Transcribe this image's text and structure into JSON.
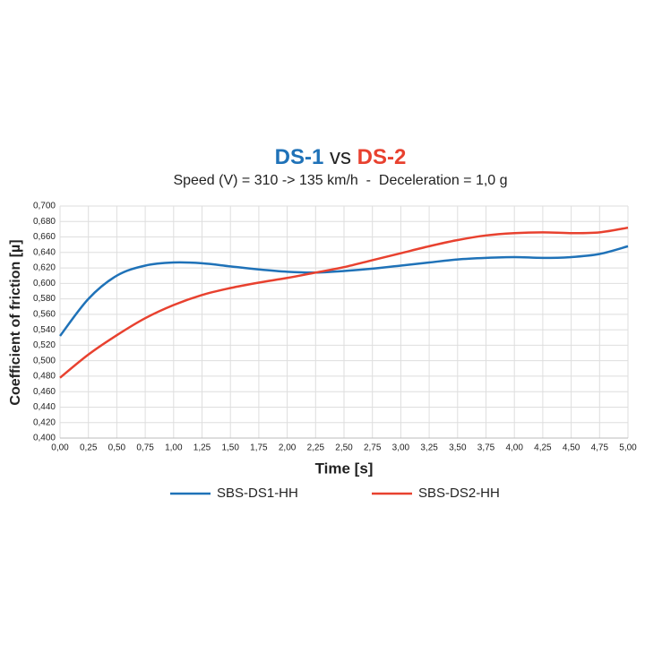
{
  "chart_data": {
    "type": "line",
    "title": [
      "DS-1",
      "vs",
      "DS-2"
    ],
    "subtitle": "Speed (V) = 310 -> 135 km/h  -  Deceleration = 1,0 g",
    "x_label": "Time [s]",
    "y_label": "Coefficient of friction [µ]",
    "x": [
      0,
      0.25,
      0.5,
      0.75,
      1.0,
      1.25,
      1.5,
      1.75,
      2.0,
      2.25,
      2.5,
      2.75,
      3.0,
      3.25,
      3.5,
      3.75,
      4.0,
      4.25,
      4.5,
      4.75,
      5.0
    ],
    "series": [
      {
        "name": "SBS-DS1-HH",
        "color": "#1f72b8",
        "values": [
          0.532,
          0.58,
          0.61,
          0.623,
          0.627,
          0.626,
          0.622,
          0.618,
          0.615,
          0.614,
          0.616,
          0.619,
          0.623,
          0.627,
          0.631,
          0.633,
          0.634,
          0.633,
          0.634,
          0.638,
          0.648
        ]
      },
      {
        "name": "SBS-DS2-HH",
        "color": "#e8412f",
        "values": [
          0.478,
          0.508,
          0.533,
          0.555,
          0.572,
          0.585,
          0.594,
          0.601,
          0.607,
          0.614,
          0.621,
          0.63,
          0.639,
          0.648,
          0.656,
          0.662,
          0.665,
          0.666,
          0.665,
          0.666,
          0.672
        ]
      }
    ],
    "xlim": [
      0,
      5
    ],
    "ylim": [
      0.4,
      0.7
    ],
    "xticks": [
      {
        "value": 0,
        "label": "0,00"
      },
      {
        "value": 0.25,
        "label": "0,25"
      },
      {
        "value": 0.5,
        "label": "0,50"
      },
      {
        "value": 0.75,
        "label": "0,75"
      },
      {
        "value": 1,
        "label": "1,00"
      },
      {
        "value": 1.25,
        "label": "1,25"
      },
      {
        "value": 1.5,
        "label": "1,50"
      },
      {
        "value": 1.75,
        "label": "1,75"
      },
      {
        "value": 2,
        "label": "2,00"
      },
      {
        "value": 2.25,
        "label": "2,25"
      },
      {
        "value": 2.5,
        "label": "2,50"
      },
      {
        "value": 2.75,
        "label": "2,75"
      },
      {
        "value": 3,
        "label": "3,00"
      },
      {
        "value": 3.25,
        "label": "3,25"
      },
      {
        "value": 3.5,
        "label": "3,50"
      },
      {
        "value": 3.75,
        "label": "3,75"
      },
      {
        "value": 4,
        "label": "4,00"
      },
      {
        "value": 4.25,
        "label": "4,25"
      },
      {
        "value": 4.5,
        "label": "4,50"
      },
      {
        "value": 4.75,
        "label": "4,75"
      },
      {
        "value": 5,
        "label": "5,00"
      }
    ],
    "yticks": [
      {
        "value": 0.4,
        "label": "0,400"
      },
      {
        "value": 0.42,
        "label": "0,420"
      },
      {
        "value": 0.44,
        "label": "0,440"
      },
      {
        "value": 0.46,
        "label": "0,460"
      },
      {
        "value": 0.48,
        "label": "0,480"
      },
      {
        "value": 0.5,
        "label": "0,500"
      },
      {
        "value": 0.52,
        "label": "0,520"
      },
      {
        "value": 0.54,
        "label": "0,540"
      },
      {
        "value": 0.56,
        "label": "0,560"
      },
      {
        "value": 0.58,
        "label": "0,580"
      },
      {
        "value": 0.6,
        "label": "0,600"
      },
      {
        "value": 0.62,
        "label": "0,620"
      },
      {
        "value": 0.64,
        "label": "0,640"
      },
      {
        "value": 0.66,
        "label": "0,660"
      },
      {
        "value": 0.68,
        "label": "0,680"
      },
      {
        "value": 0.7,
        "label": "0,700"
      }
    ],
    "grid": true,
    "legend": "bottom"
  }
}
